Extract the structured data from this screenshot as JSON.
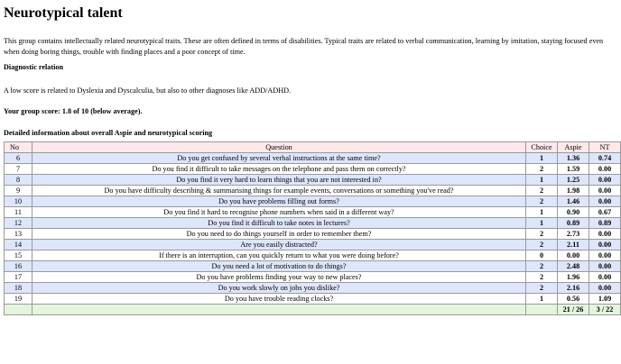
{
  "title": "Neurotypical talent",
  "intro": "This group contains intellectually related neurotypical traits. These are often defined in terms of disabilities.  Typical traits are related to verbal communication, learning by imitation, staying focused even when doing boring things, trouble with finding places and a poor concept of time.",
  "diagnostic": {
    "title": "Diagnostic relation",
    "text": "A low score is related to Dyslexia and Dyscalculia, but also to other diagnoses like ADD/ADHD."
  },
  "score_line": "Your group score: 1.8 of 10 (below average).",
  "detail_title": "Detailed information about overall Aspie and neurotypical scoring",
  "table": {
    "headers": {
      "no": "No",
      "question": "Question",
      "choice": "Choice",
      "aspie": "Aspie",
      "nt": "NT"
    },
    "rows": [
      {
        "no": "6",
        "question": "Do you get confused by several verbal instructions at the same time?",
        "choice": "1",
        "aspie": "1.36",
        "nt": "0.74"
      },
      {
        "no": "7",
        "question": "Do you find it difficult to take messages on the telephone and pass them on correctly?",
        "choice": "2",
        "aspie": "1.59",
        "nt": "0.00"
      },
      {
        "no": "8",
        "question": "Do you find it very hard to learn things that you are not interested in?",
        "choice": "1",
        "aspie": "1.25",
        "nt": "0.00"
      },
      {
        "no": "9",
        "question": "Do you have difficulty describing & summarising things for example events, conversations or something you've read?",
        "choice": "2",
        "aspie": "1.98",
        "nt": "0.00"
      },
      {
        "no": "10",
        "question": "Do you have problems filling out forms?",
        "choice": "2",
        "aspie": "1.46",
        "nt": "0.00"
      },
      {
        "no": "11",
        "question": "Do you find it hard to recognise phone numbers when said in a different way?",
        "choice": "1",
        "aspie": "0.90",
        "nt": "0.67"
      },
      {
        "no": "12",
        "question": "Do you find it difficult to take notes in lectures?",
        "choice": "1",
        "aspie": "0.89",
        "nt": "0.89"
      },
      {
        "no": "13",
        "question": "Do you need to do things yourself in order to remember them?",
        "choice": "2",
        "aspie": "2.73",
        "nt": "0.00"
      },
      {
        "no": "14",
        "question": "Are you easily distracted?",
        "choice": "2",
        "aspie": "2.11",
        "nt": "0.00"
      },
      {
        "no": "15",
        "question": "If there is an interruption, can you quickly return to what you were doing before?",
        "choice": "0",
        "aspie": "0.00",
        "nt": "0.00"
      },
      {
        "no": "16",
        "question": "Do you need a lot of motivation to do things?",
        "choice": "2",
        "aspie": "2.48",
        "nt": "0.00"
      },
      {
        "no": "17",
        "question": "Do you have problems finding your way to new places?",
        "choice": "2",
        "aspie": "1.96",
        "nt": "0.00"
      },
      {
        "no": "18",
        "question": "Do you work slowly on jobs you dislike?",
        "choice": "2",
        "aspie": "2.16",
        "nt": "0.00"
      },
      {
        "no": "19",
        "question": "Do you have trouble reading clocks?",
        "choice": "1",
        "aspie": "0.56",
        "nt": "1.09"
      }
    ],
    "totals": {
      "aspie": "21 / 26",
      "nt": "3 / 22"
    }
  }
}
